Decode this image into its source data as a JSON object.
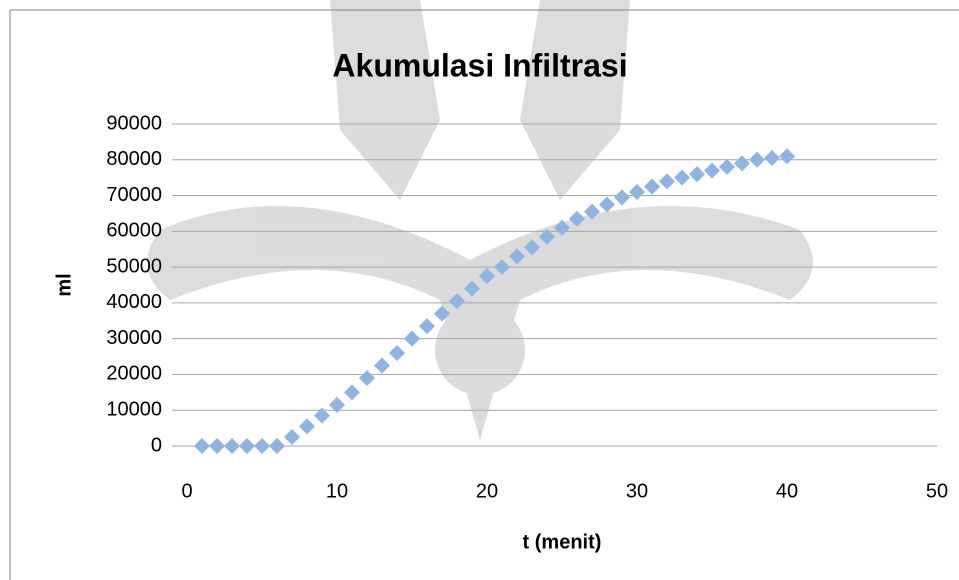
{
  "chart_data": {
    "type": "scatter",
    "title": "Akumulasi Infiltrasi",
    "xlabel": "t (menit)",
    "ylabel": "ml",
    "series": [
      {
        "color": "#8eb4e3",
        "x": [
          1,
          2,
          3,
          4,
          5,
          6,
          7,
          8,
          9,
          10,
          11,
          12,
          13,
          14,
          15,
          16,
          17,
          18,
          19,
          20,
          21,
          22,
          23,
          24,
          25,
          26,
          27,
          28,
          29,
          30,
          31,
          32,
          33,
          34,
          35,
          36,
          37,
          38,
          39,
          40
        ],
        "values": [
          0,
          0,
          0,
          0,
          0,
          0,
          2500,
          5500,
          8500,
          11500,
          15000,
          19000,
          22500,
          26000,
          30000,
          33500,
          37000,
          40500,
          44000,
          47500,
          50000,
          53000,
          55500,
          58500,
          61000,
          63500,
          65500,
          67500,
          69500,
          71000,
          72500,
          74000,
          75000,
          76000,
          77000,
          78000,
          79000,
          80000,
          80500,
          81000
        ]
      }
    ],
    "xlim": [
      0,
      50
    ],
    "xticks": [
      0,
      10,
      20,
      30,
      40,
      50
    ],
    "ylim": [
      0,
      90000
    ],
    "yticks": [
      0,
      10000,
      20000,
      30000,
      40000,
      50000,
      60000,
      70000,
      80000,
      90000
    ],
    "grid": true
  }
}
